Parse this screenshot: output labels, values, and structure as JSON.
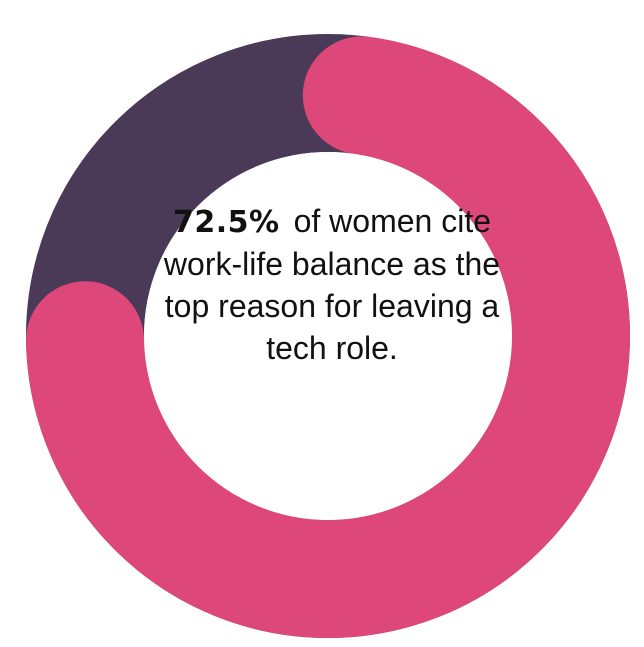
{
  "chart_data": {
    "type": "pie",
    "variant": "donut",
    "slices": [
      {
        "value": 72.5,
        "color": "#de4779"
      },
      {
        "value": 27.5,
        "color": "#4b3a57"
      }
    ],
    "center_text": {
      "value_label": "72.5%",
      "statement": "of women cite work-life balance as the top reason for leaving a tech role."
    },
    "start": "top",
    "direction": "clockwise",
    "rounded_ends": true
  }
}
